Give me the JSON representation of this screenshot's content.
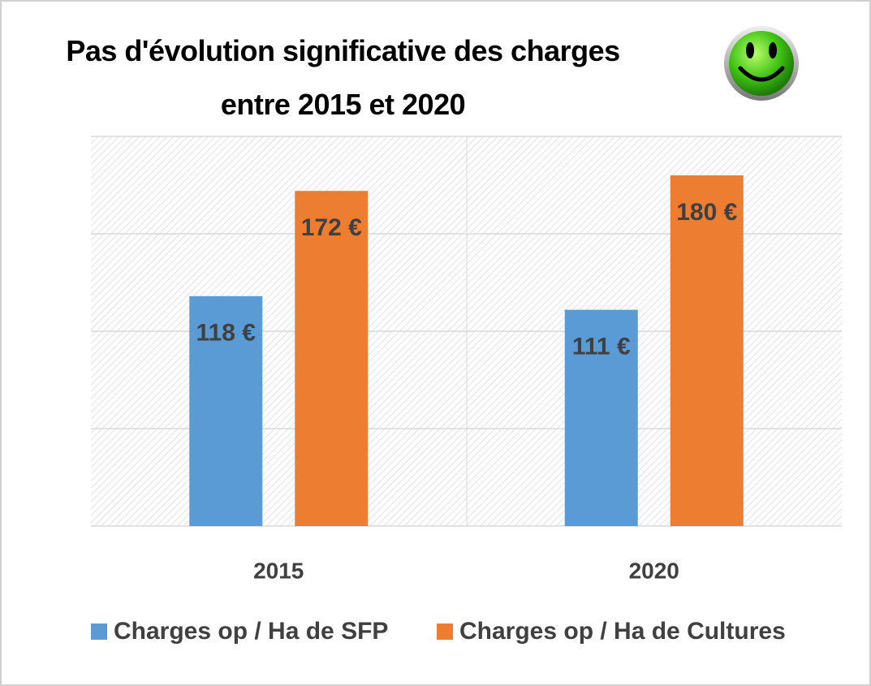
{
  "chart_data": {
    "type": "bar",
    "title": "Pas d'évolution significative des charges\nentre 2015 et 2020",
    "categories": [
      "2015",
      "2020"
    ],
    "series": [
      {
        "name": "Charges op / Ha de SFP",
        "color": "#5b9bd5",
        "values": [
          118,
          111
        ],
        "value_labels": [
          "118 €",
          "111 €"
        ]
      },
      {
        "name": "Charges op / Ha de Cultures",
        "color": "#ed7d31",
        "values": [
          172,
          180
        ],
        "value_labels": [
          "172 €",
          "180 €"
        ]
      }
    ],
    "ylim": [
      0,
      200
    ],
    "yticks": [
      0,
      50,
      100,
      150,
      200
    ],
    "grid": true,
    "legend": "bottom"
  }
}
